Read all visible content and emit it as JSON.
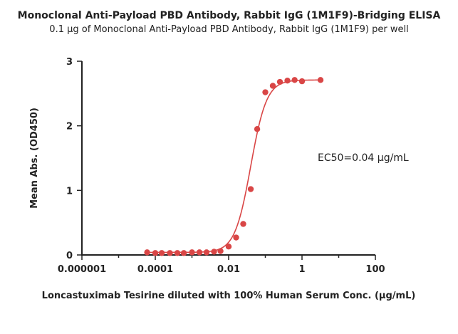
{
  "chart_data": {
    "type": "scatter",
    "title": "Monoclonal Anti-Payload PBD Antibody, Rabbit IgG (1M1F9)-Bridging ELISA",
    "subtitle": "0.1 µg of Monoclonal Anti-Payload PBD Antibody, Rabbit IgG (1M1F9) per well",
    "xlabel": "Loncastuximab Tesirine diluted with 100% Human Serum Conc. (µg/mL)",
    "ylabel": "Mean Abs. (OD450)",
    "x_scale": "log",
    "xlim": [
      1e-06,
      100
    ],
    "ylim": [
      0,
      3
    ],
    "x_ticks": [
      1e-06,
      0.0001,
      0.01,
      1,
      100
    ],
    "x_tick_labels": [
      "0.000001",
      "0.0001",
      "0.01",
      "1",
      "100"
    ],
    "y_ticks": [
      0,
      1,
      2,
      3
    ],
    "y_tick_labels": [
      "0",
      "1",
      "2",
      "3"
    ],
    "grid": false,
    "annotation": "EC50=0.04 µg/mL",
    "fit": {
      "bottom": 0.04,
      "top": 2.71,
      "ec50": 0.04,
      "hill": 2.0
    },
    "series": [
      {
        "color": "#d94646",
        "x": [
          6e-05,
          0.0001,
          0.00015,
          0.00025,
          0.0004,
          0.0006,
          0.001,
          0.0016,
          0.0025,
          0.004,
          0.006,
          0.01,
          0.016,
          0.025,
          0.04,
          0.06,
          0.1,
          0.16,
          0.25,
          0.4,
          0.63,
          1,
          3.2
        ],
        "y": [
          0.04,
          0.03,
          0.03,
          0.03,
          0.03,
          0.03,
          0.04,
          0.04,
          0.04,
          0.05,
          0.06,
          0.13,
          0.27,
          0.48,
          1.02,
          1.95,
          2.52,
          2.62,
          2.68,
          2.7,
          2.71,
          2.69,
          2.71
        ]
      }
    ]
  }
}
